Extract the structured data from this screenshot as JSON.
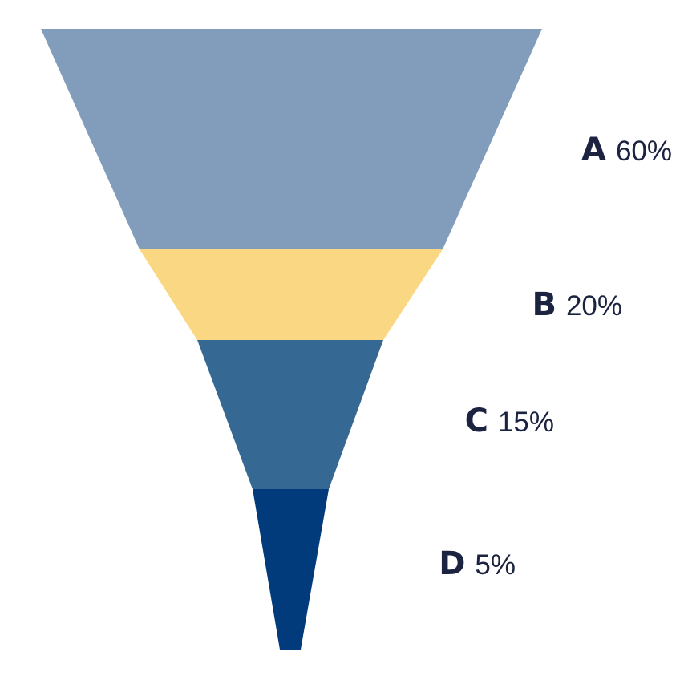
{
  "chart_data": {
    "type": "funnel",
    "stages": [
      {
        "label": "A",
        "value": 60,
        "value_text": "60%",
        "color": "#829dbb"
      },
      {
        "label": "B",
        "value": 20,
        "value_text": "20%",
        "color": "#fad782"
      },
      {
        "label": "C",
        "value": 15,
        "value_text": "15%",
        "color": "#366894"
      },
      {
        "label": "D",
        "value": 5,
        "value_text": "5%",
        "color": "#023b7b"
      }
    ]
  }
}
